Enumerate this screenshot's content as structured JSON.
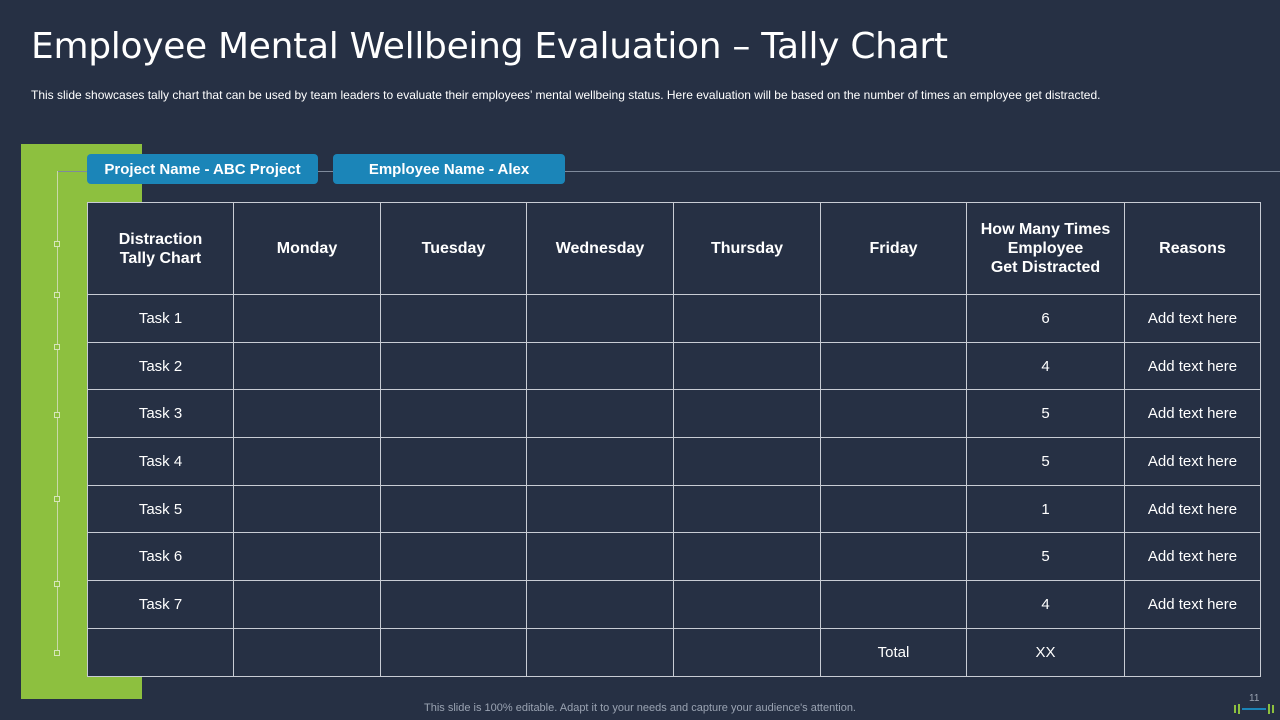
{
  "slide": {
    "title": "Employee Mental Wellbeing Evaluation – Tally Chart",
    "subtitle": "This slide showcases tally chart that can be used by team leaders to evaluate their employees’ mental wellbeing status. Here evaluation will be based on the number of times an employee get distracted.",
    "footer": "This slide is 100% editable. Adapt it to your needs and capture your audience's attention.",
    "page_number": "11"
  },
  "tabs": {
    "project": "Project Name - ABC Project",
    "employee": "Employee Name - Alex"
  },
  "table": {
    "headers": [
      "Distraction\nTally Chart",
      "Monday",
      "Tuesday",
      "Wednesday",
      "Thursday",
      "Friday",
      "How Many Times\nEmployee\nGet Distracted",
      "Reasons"
    ],
    "rows": [
      {
        "task": "Task 1",
        "mon": "",
        "tue": "",
        "wed": "",
        "thu": "",
        "fri": "",
        "count": "6",
        "reason": "Add text here"
      },
      {
        "task": "Task 2",
        "mon": "",
        "tue": "",
        "wed": "",
        "thu": "",
        "fri": "",
        "count": "4",
        "reason": "Add text here"
      },
      {
        "task": "Task 3",
        "mon": "",
        "tue": "",
        "wed": "",
        "thu": "",
        "fri": "",
        "count": "5",
        "reason": "Add text here"
      },
      {
        "task": "Task 4",
        "mon": "",
        "tue": "",
        "wed": "",
        "thu": "",
        "fri": "",
        "count": "5",
        "reason": "Add text here"
      },
      {
        "task": "Task 5",
        "mon": "",
        "tue": "",
        "wed": "",
        "thu": "",
        "fri": "",
        "count": "1",
        "reason": "Add text here"
      },
      {
        "task": "Task 6",
        "mon": "",
        "tue": "",
        "wed": "",
        "thu": "",
        "fri": "",
        "count": "5",
        "reason": "Add text here"
      },
      {
        "task": "Task 7",
        "mon": "",
        "tue": "",
        "wed": "",
        "thu": "",
        "fri": "",
        "count": "4",
        "reason": "Add text here"
      }
    ],
    "total_label": "Total",
    "total_value": "XX"
  },
  "colors": {
    "background": "#263044",
    "accent_green": "#8dc03f",
    "tab_blue": "#1b85b8"
  }
}
